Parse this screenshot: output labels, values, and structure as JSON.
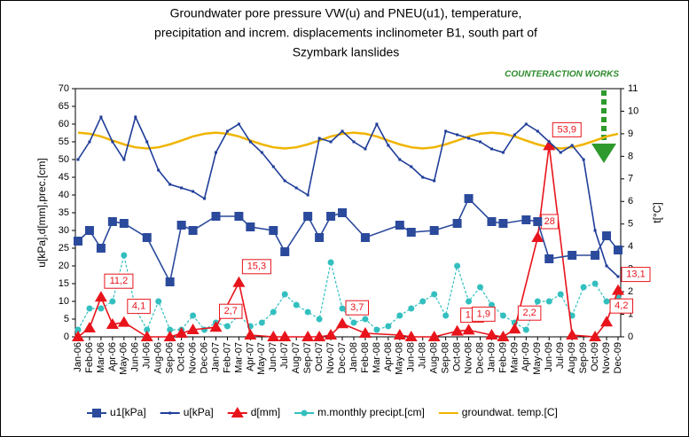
{
  "chart_data": {
    "type": "line",
    "title": [
      "Groundwater pore pressure VW(u) and PNEU(u1), temperature,",
      "precipitation and increm.  displacements inclinometer B1, south part of",
      "Szymbark lanslides"
    ],
    "annotation": "COUNTERACTION WORKS",
    "ylabel": "u[kPa],d[mm],prec.[cm]",
    "y2label": "t[°C]",
    "categories": [
      "Jan-06",
      "Feb-06",
      "Mar-06",
      "Apr-06",
      "May-06",
      "Jun-06",
      "Jul-06",
      "Aug-06",
      "Sep-06",
      "Oct-06",
      "Nov-06",
      "Dec-06",
      "Jan-07",
      "Feb-07",
      "Mar-07",
      "Apr-07",
      "May-07",
      "Jun-07",
      "Jul-07",
      "Aug-07",
      "Sep-07",
      "Oct-07",
      "Nov-07",
      "Dec-07",
      "Jan-08",
      "Feb-08",
      "Mar-08",
      "Apr-08",
      "May-08",
      "Jun-08",
      "Jul-08",
      "Aug-08",
      "Sep-08",
      "Oct-08",
      "Nov-08",
      "Dec-08",
      "Jan-09",
      "Feb-09",
      "Mar-09",
      "Apr-09",
      "May-09",
      "Jun-09",
      "Jul-09",
      "Aug-09",
      "Sep-09",
      "Oct-09",
      "Nov-09",
      "Dec-09"
    ],
    "ylim": [
      0,
      70
    ],
    "yticks": [
      0,
      5,
      10,
      15,
      20,
      25,
      30,
      35,
      40,
      45,
      50,
      55,
      60,
      65,
      70
    ],
    "y2lim": [
      0,
      11
    ],
    "y2ticks": [
      0,
      1,
      2,
      3,
      4,
      5,
      6,
      7,
      8,
      9,
      10,
      11
    ],
    "grid": false,
    "legend": "bottom",
    "series": [
      {
        "name": "u1[kPa]",
        "color": "#2b4a9c",
        "marker": "square",
        "x": [
          "Jan-06",
          "Feb-06",
          "Mar-06",
          "Apr-06",
          "May-06",
          "Jul-06",
          "Sep-06",
          "Oct-06",
          "Nov-06",
          "Jan-07",
          "Mar-07",
          "Apr-07",
          "Jun-07",
          "Jul-07",
          "Sep-07",
          "Oct-07",
          "Nov-07",
          "Dec-07",
          "Feb-08",
          "May-08",
          "Jun-08",
          "Aug-08",
          "Oct-08",
          "Nov-08",
          "Jan-09",
          "Feb-09",
          "Apr-09",
          "May-09",
          "Jun-09",
          "Aug-09",
          "Oct-09",
          "Nov-09",
          "Dec-09"
        ],
        "values": [
          27,
          30,
          25,
          32.5,
          32,
          28,
          15.5,
          31.5,
          30,
          34,
          34,
          31,
          30,
          24,
          34,
          28,
          34,
          35,
          28,
          31.5,
          29.5,
          30,
          32,
          39,
          32.5,
          32,
          33,
          32.5,
          22,
          23,
          23,
          28.5,
          24.5
        ]
      },
      {
        "name": "u[kPa]",
        "color": "#1f3d99",
        "marker": "dot",
        "values": [
          50,
          55,
          62,
          55,
          50,
          62,
          55,
          47,
          43,
          42,
          41,
          39,
          52,
          58,
          60,
          55,
          52,
          48,
          44,
          42,
          40,
          56,
          55,
          58,
          55,
          53,
          60,
          54,
          50,
          48,
          45,
          44,
          58,
          57,
          56,
          55,
          53,
          52,
          57,
          60,
          58,
          55,
          52,
          54,
          50,
          30,
          20,
          17
        ]
      },
      {
        "name": "d[mm]",
        "color": "#e8141b",
        "marker": "triangle",
        "x": [
          "Jan-06",
          "Feb-06",
          "Mar-06",
          "Apr-06",
          "May-06",
          "Jul-06",
          "Sep-06",
          "Oct-06",
          "Nov-06",
          "Jan-07",
          "Mar-07",
          "Apr-07",
          "Jun-07",
          "Jul-07",
          "Sep-07",
          "Oct-07",
          "Nov-07",
          "Dec-07",
          "Feb-08",
          "May-08",
          "Jun-08",
          "Aug-08",
          "Oct-08",
          "Nov-08",
          "Jan-09",
          "Feb-09",
          "Mar-09",
          "May-09",
          "Jun-09",
          "Aug-09",
          "Oct-09",
          "Nov-09",
          "Dec-09"
        ],
        "values": [
          0,
          2.5,
          11.2,
          3.5,
          4.1,
          0,
          0,
          1,
          2,
          2.7,
          15.3,
          0.5,
          0,
          0,
          0,
          0,
          0.5,
          3.7,
          1,
          0.5,
          0,
          0,
          1.6,
          1.9,
          0.5,
          0,
          2.2,
          28,
          53.9,
          0.5,
          0,
          4.2,
          13.1
        ],
        "value_labels": [
          null,
          null,
          "11,2",
          null,
          "4,1",
          null,
          null,
          null,
          null,
          "2,7",
          "15,3",
          null,
          null,
          null,
          null,
          null,
          null,
          "3,7",
          null,
          null,
          null,
          null,
          "1,6",
          "1,9",
          null,
          null,
          "2,2",
          "28",
          "53,9",
          null,
          null,
          "4,2",
          "13,1"
        ]
      },
      {
        "name": "m.monthly precipt.[cm]",
        "color": "#33bfbf",
        "marker": "circle",
        "values": [
          2,
          8,
          8,
          10,
          23,
          8,
          2,
          10,
          2,
          2,
          6,
          2,
          4,
          3,
          6,
          3,
          4,
          7,
          12,
          9,
          7,
          5,
          21,
          8,
          4,
          5,
          2,
          3,
          6,
          8,
          10,
          12,
          6,
          20,
          10,
          14,
          9,
          6,
          4,
          2,
          10,
          10,
          12,
          6,
          14,
          15,
          10,
          11
        ]
      },
      {
        "name": "groundwat. temp.[C]",
        "color": "#f0b400",
        "marker": "none",
        "axis": "y2",
        "values": [
          9.05,
          9.0,
          8.88,
          8.7,
          8.53,
          8.4,
          8.35,
          8.4,
          8.53,
          8.7,
          8.88,
          9.0,
          9.05,
          9.0,
          8.88,
          8.7,
          8.53,
          8.4,
          8.35,
          8.4,
          8.53,
          8.7,
          8.88,
          9.0,
          9.05,
          9.0,
          8.88,
          8.7,
          8.53,
          8.4,
          8.35,
          8.4,
          8.53,
          8.7,
          8.88,
          9.0,
          9.05,
          9.0,
          8.88,
          8.7,
          8.53,
          8.4,
          8.35,
          8.4,
          8.53,
          8.7,
          8.88,
          9.0
        ]
      }
    ]
  }
}
